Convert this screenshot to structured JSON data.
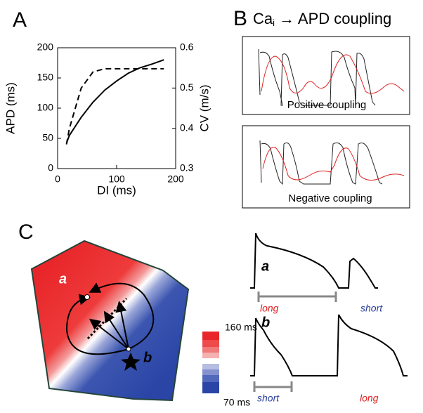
{
  "chart_data": {
    "type": "line",
    "panel_label": "A",
    "x_label": "DI (ms)",
    "y_label": "APD (ms)",
    "y2_label": "CV (m/s)",
    "x": [
      15,
      20,
      40,
      60,
      80,
      100,
      120,
      140,
      160,
      180
    ],
    "series": [
      {
        "color": "#000000",
        "style": "solid",
        "values": [
          42,
          55,
          85,
          110,
          130,
          145,
          158,
          167,
          173,
          180
        ]
      },
      {
        "color": "#000000",
        "style": "dashed",
        "axis": "y2",
        "values": [
          0.36,
          0.4,
          0.5,
          0.54,
          0.548,
          0.548,
          0.548,
          0.548,
          0.548,
          0.548
        ]
      }
    ],
    "xlim": [
      0,
      200
    ],
    "xticks": [
      0,
      100,
      200
    ],
    "ylim": [
      0,
      200
    ],
    "yticks": [
      0,
      50,
      100,
      150,
      200
    ],
    "y2lim": [
      0.3,
      0.6
    ],
    "y2ticks": [
      0.3,
      0.4,
      0.5,
      0.6
    ]
  },
  "panel_b": {
    "label": "B",
    "title": {
      "main": "Ca",
      "subscript": "i",
      "rest": "→ APD coupling"
    },
    "boxes": [
      {
        "caption": "Positive coupling"
      },
      {
        "caption": "Negative coupling"
      }
    ]
  },
  "panel_c": {
    "label": "C",
    "map_labels": [
      "a",
      "b"
    ],
    "colorbar": {
      "max_label": "160 ms",
      "min_label": "70 ms"
    },
    "traces": [
      {
        "label": "a",
        "left": "long",
        "right": "short"
      },
      {
        "label": "b",
        "left": "short",
        "right": "long"
      }
    ]
  }
}
